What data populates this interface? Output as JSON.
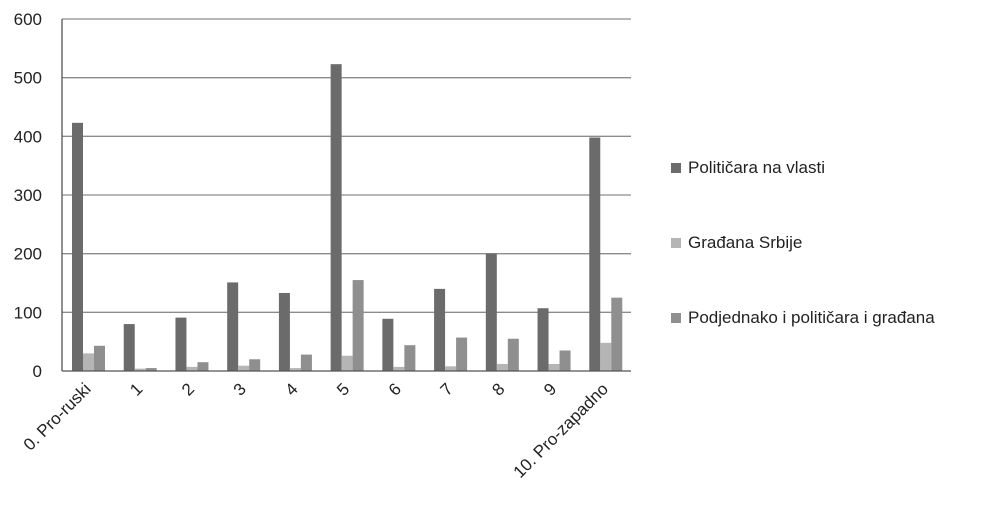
{
  "chart_data": {
    "type": "bar",
    "categories": [
      "0. Pro-ruski",
      "1",
      "2",
      "3",
      "4",
      "5",
      "6",
      "7",
      "8",
      "9",
      "10. Pro-zapadno"
    ],
    "series": [
      {
        "name": "Političara na vlasti",
        "color": "#6b6b6b",
        "values": [
          423,
          80,
          91,
          151,
          133,
          523,
          89,
          140,
          200,
          107,
          398
        ]
      },
      {
        "name": "Građana Srbije",
        "color": "#b5b5b5",
        "values": [
          30,
          4,
          7,
          9,
          5,
          26,
          7,
          8,
          12,
          12,
          48
        ]
      },
      {
        "name": "Podjednako i političara i građana",
        "color": "#8f8f8f",
        "values": [
          43,
          5,
          15,
          20,
          28,
          155,
          44,
          57,
          55,
          35,
          125
        ]
      }
    ],
    "ylim": [
      0,
      600
    ],
    "yticks": [
      "0",
      "100",
      "200",
      "300",
      "400",
      "500",
      "600"
    ],
    "grid": true,
    "legend_position": "right",
    "title": "",
    "xlabel": "",
    "ylabel": ""
  }
}
